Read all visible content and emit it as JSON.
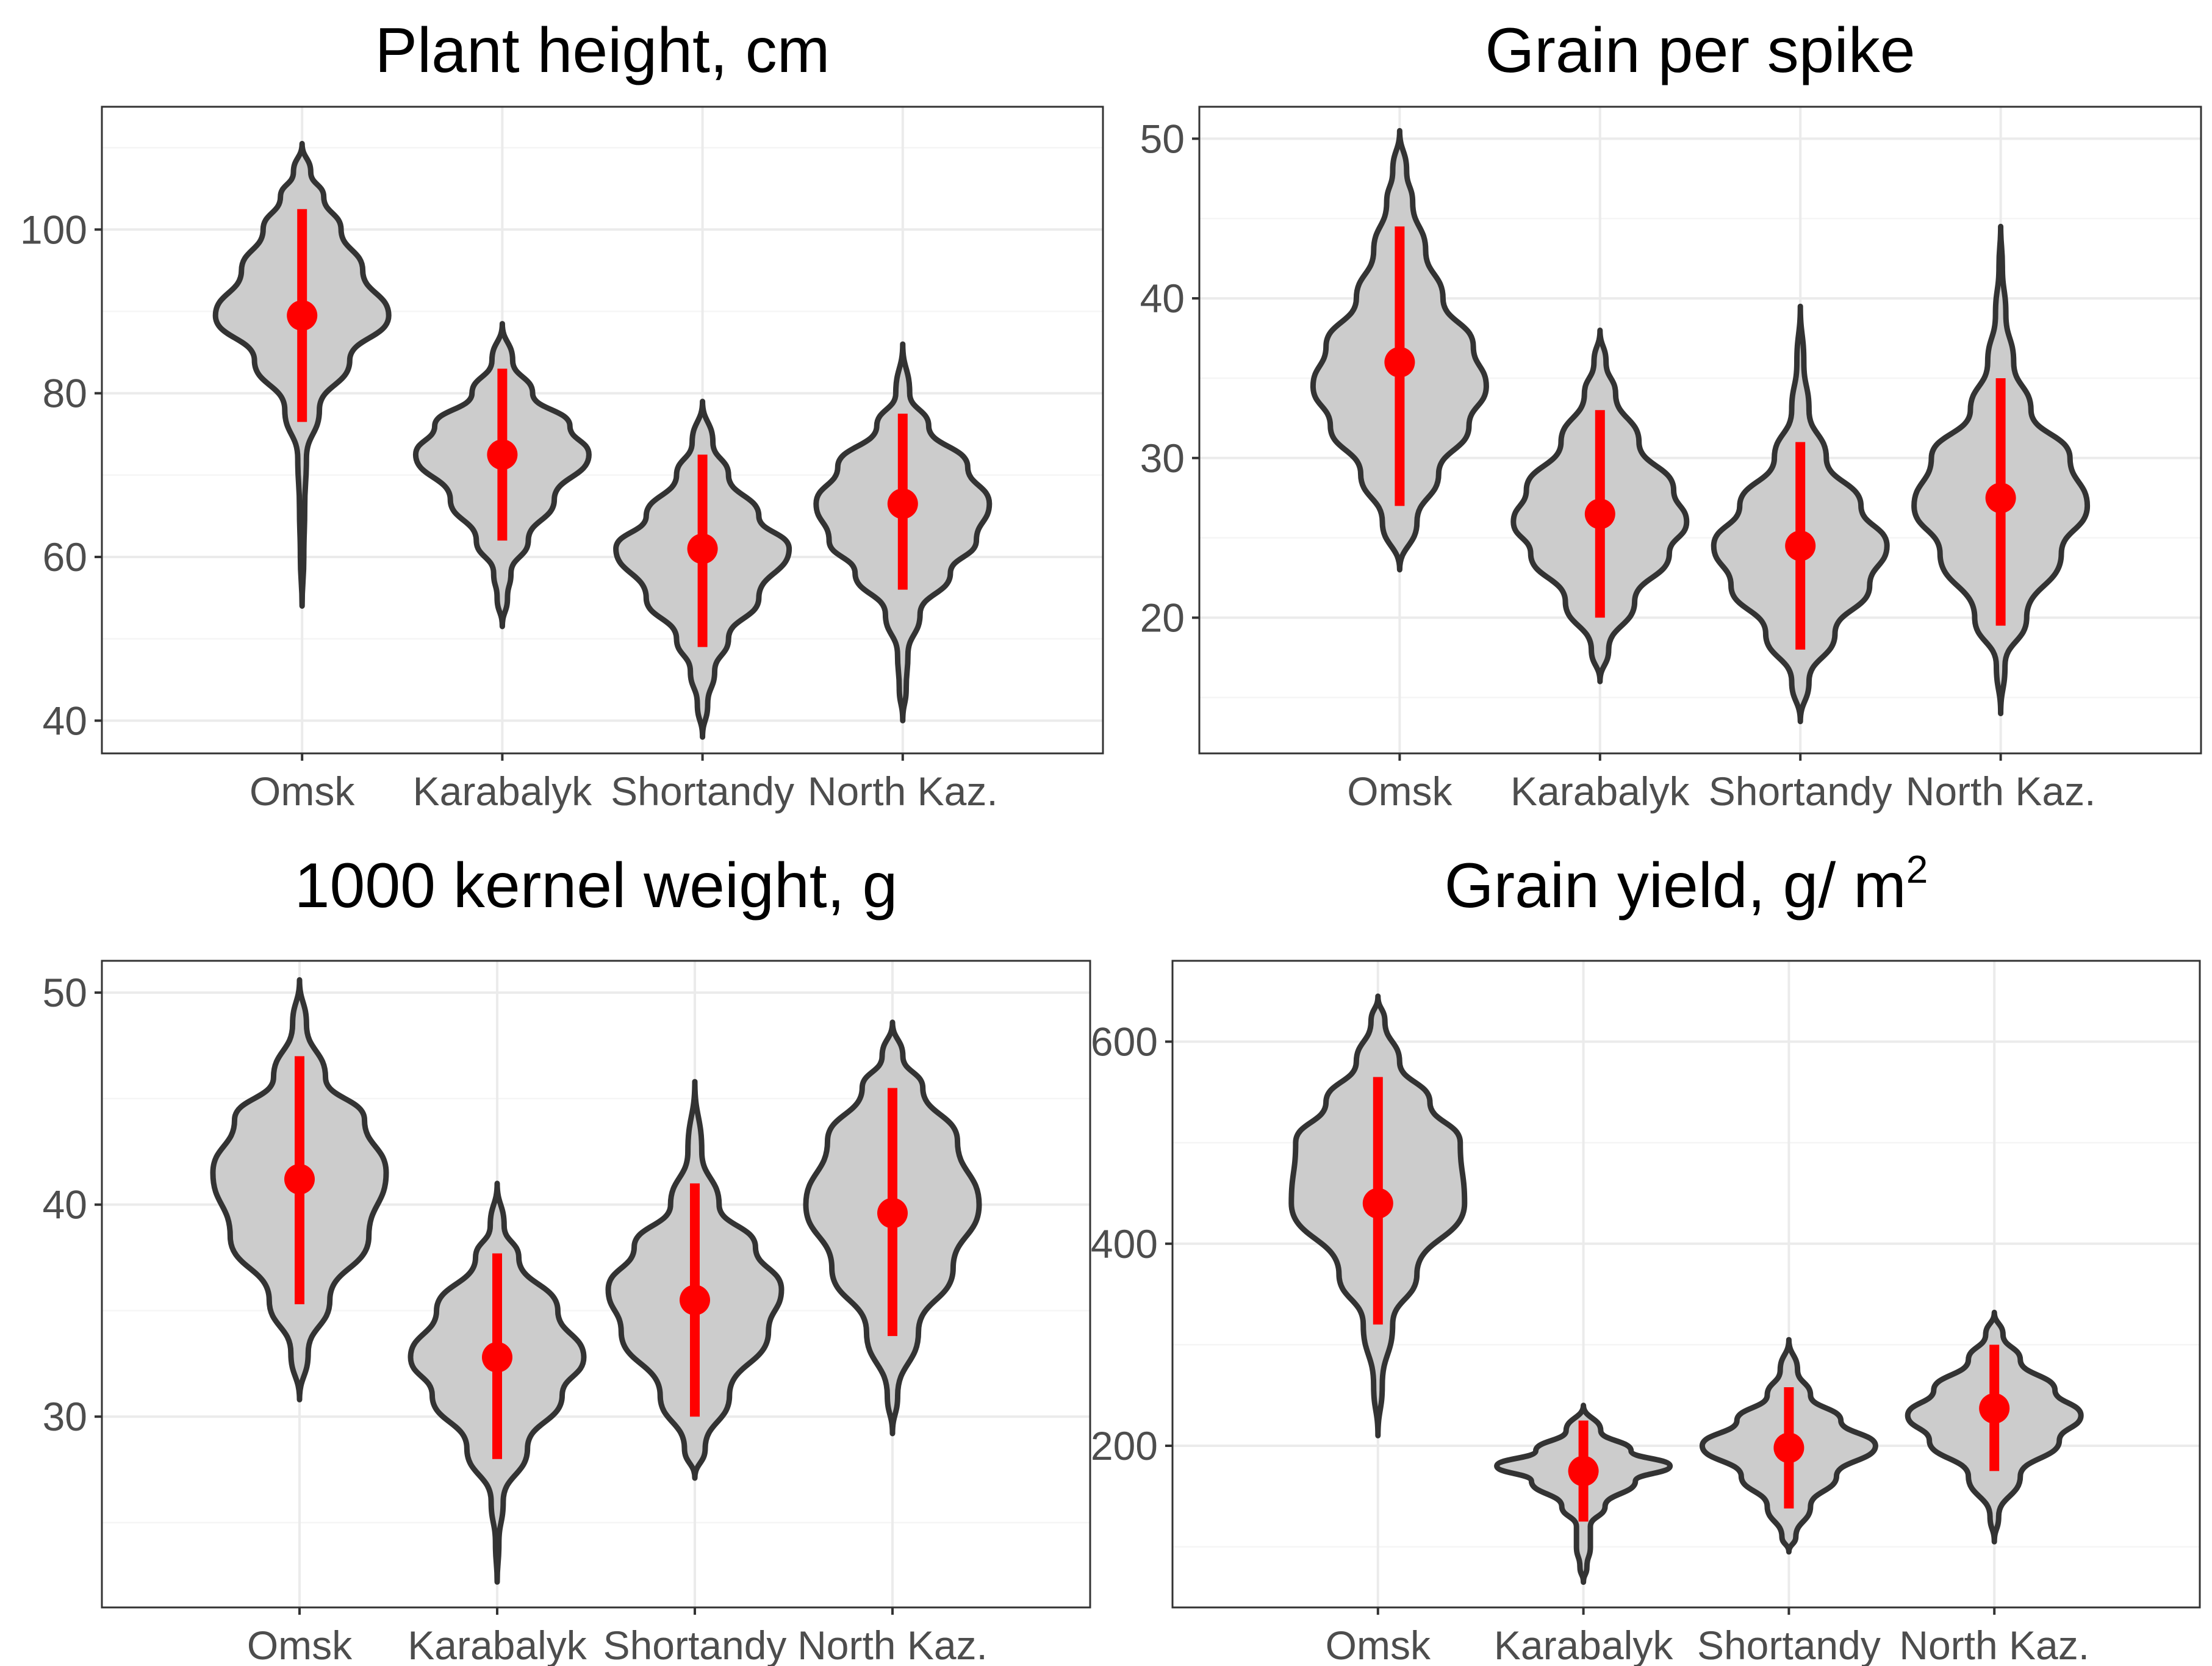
{
  "chart_data": [
    {
      "type": "violin",
      "title": "Plant height, cm",
      "title_superscript": "",
      "xlabel": "",
      "ylabel": "",
      "categories": [
        "Omsk",
        "Karabalyk",
        "Shortandy",
        "North Kaz."
      ],
      "ylim": [
        36,
        115
      ],
      "yticks": [
        40,
        60,
        80,
        100
      ],
      "mean": [
        89.5,
        72.5,
        61,
        66.5
      ],
      "range_low": [
        76.5,
        62,
        49,
        56
      ],
      "range_high": [
        102.5,
        83,
        72.5,
        77.5
      ],
      "min": [
        54,
        51.5,
        38,
        40
      ],
      "max": [
        110.5,
        88.5,
        79,
        86
      ],
      "violin_profiles": [
        [
          [
            54,
            0.0
          ],
          [
            60,
            0.02
          ],
          [
            66,
            0.03
          ],
          [
            72,
            0.05
          ],
          [
            78,
            0.2
          ],
          [
            84,
            0.55
          ],
          [
            89.5,
            1.0
          ],
          [
            95,
            0.7
          ],
          [
            100,
            0.45
          ],
          [
            104,
            0.25
          ],
          [
            107,
            0.1
          ],
          [
            110.5,
            0.0
          ]
        ],
        [
          [
            51.5,
            0.0
          ],
          [
            55,
            0.06
          ],
          [
            58,
            0.1
          ],
          [
            62,
            0.3
          ],
          [
            67,
            0.6
          ],
          [
            72.5,
            1.0
          ],
          [
            76,
            0.78
          ],
          [
            80,
            0.35
          ],
          [
            84,
            0.12
          ],
          [
            88.5,
            0.0
          ]
        ],
        [
          [
            38,
            0.0
          ],
          [
            42,
            0.06
          ],
          [
            46,
            0.14
          ],
          [
            50,
            0.3
          ],
          [
            55,
            0.65
          ],
          [
            61,
            1.0
          ],
          [
            65,
            0.65
          ],
          [
            70,
            0.3
          ],
          [
            74,
            0.12
          ],
          [
            79,
            0.0
          ]
        ],
        [
          [
            40,
            0.0
          ],
          [
            44,
            0.04
          ],
          [
            48,
            0.06
          ],
          [
            53,
            0.2
          ],
          [
            58,
            0.55
          ],
          [
            62,
            0.85
          ],
          [
            66.5,
            1.0
          ],
          [
            71,
            0.75
          ],
          [
            76,
            0.3
          ],
          [
            80,
            0.08
          ],
          [
            86,
            0.0
          ]
        ]
      ]
    },
    {
      "type": "violin",
      "title": "Grain per spike",
      "title_superscript": "",
      "xlabel": "",
      "ylabel": "",
      "categories": [
        "Omsk",
        "Karabalyk",
        "Shortandy",
        "North Kaz."
      ],
      "ylim": [
        11.5,
        52
      ],
      "yticks": [
        20,
        30,
        40,
        50
      ],
      "mean": [
        36,
        26.5,
        24.5,
        27.5
      ],
      "range_low": [
        27,
        20,
        18,
        19.5
      ],
      "range_high": [
        44.5,
        33,
        31,
        35
      ],
      "min": [
        23,
        16,
        13.5,
        14
      ],
      "max": [
        50.5,
        38,
        39.5,
        44.5
      ],
      "violin_profiles": [
        [
          [
            23,
            0.0
          ],
          [
            26,
            0.2
          ],
          [
            29,
            0.45
          ],
          [
            32,
            0.8
          ],
          [
            34.5,
            1.0
          ],
          [
            37,
            0.85
          ],
          [
            40,
            0.5
          ],
          [
            43,
            0.3
          ],
          [
            46,
            0.15
          ],
          [
            48,
            0.08
          ],
          [
            50.5,
            0.0
          ]
        ],
        [
          [
            16,
            0.0
          ],
          [
            18,
            0.1
          ],
          [
            21,
            0.4
          ],
          [
            24,
            0.8
          ],
          [
            26,
            1.0
          ],
          [
            28,
            0.85
          ],
          [
            31,
            0.45
          ],
          [
            34,
            0.18
          ],
          [
            36,
            0.07
          ],
          [
            38,
            0.0
          ]
        ],
        [
          [
            13.5,
            0.0
          ],
          [
            16,
            0.1
          ],
          [
            19,
            0.4
          ],
          [
            22,
            0.8
          ],
          [
            24.5,
            1.0
          ],
          [
            27,
            0.7
          ],
          [
            30,
            0.3
          ],
          [
            33,
            0.1
          ],
          [
            36,
            0.04
          ],
          [
            39.5,
            0.0
          ]
        ],
        [
          [
            14,
            0.0
          ],
          [
            17,
            0.05
          ],
          [
            20,
            0.3
          ],
          [
            24,
            0.7
          ],
          [
            27,
            1.0
          ],
          [
            30,
            0.8
          ],
          [
            33,
            0.35
          ],
          [
            36,
            0.15
          ],
          [
            39,
            0.06
          ],
          [
            42,
            0.02
          ],
          [
            44.5,
            0.0
          ]
        ]
      ]
    },
    {
      "type": "violin",
      "title": "1000 kernel weight, g",
      "title_superscript": "",
      "xlabel": "",
      "ylabel": "",
      "categories": [
        "Omsk",
        "Karabalyk",
        "Shortandy",
        "North Kaz."
      ],
      "ylim": [
        21,
        51.5
      ],
      "yticks": [
        30,
        40,
        50
      ],
      "mean": [
        41.2,
        32.8,
        35.5,
        39.6
      ],
      "range_low": [
        35.3,
        28,
        30,
        33.8
      ],
      "range_high": [
        47,
        37.7,
        41,
        45.5
      ],
      "min": [
        30.8,
        22.2,
        27.1,
        29.2
      ],
      "max": [
        50.6,
        41,
        45.8,
        48.6
      ],
      "violin_profiles": [
        [
          [
            30.8,
            0.0
          ],
          [
            33,
            0.1
          ],
          [
            35.5,
            0.35
          ],
          [
            38.5,
            0.8
          ],
          [
            41.5,
            1.0
          ],
          [
            44,
            0.75
          ],
          [
            46,
            0.3
          ],
          [
            48.5,
            0.08
          ],
          [
            50.6,
            0.0
          ]
        ],
        [
          [
            22.2,
            0.0
          ],
          [
            24,
            0.02
          ],
          [
            26,
            0.07
          ],
          [
            28.5,
            0.35
          ],
          [
            31,
            0.75
          ],
          [
            32.8,
            1.0
          ],
          [
            35,
            0.7
          ],
          [
            37.5,
            0.25
          ],
          [
            39,
            0.08
          ],
          [
            41,
            0.0
          ]
        ],
        [
          [
            27.1,
            0.0
          ],
          [
            28.5,
            0.12
          ],
          [
            31,
            0.4
          ],
          [
            34,
            0.85
          ],
          [
            36,
            1.0
          ],
          [
            38,
            0.7
          ],
          [
            40,
            0.28
          ],
          [
            42.5,
            0.08
          ],
          [
            45.8,
            0.0
          ]
        ],
        [
          [
            29.2,
            0.0
          ],
          [
            31,
            0.06
          ],
          [
            34,
            0.3
          ],
          [
            37,
            0.7
          ],
          [
            40,
            1.0
          ],
          [
            43,
            0.75
          ],
          [
            45.5,
            0.35
          ],
          [
            47,
            0.12
          ],
          [
            48.6,
            0.0
          ]
        ]
      ]
    },
    {
      "type": "violin",
      "title": "Grain yield, g/ m",
      "title_superscript": "2",
      "xlabel": "",
      "ylabel": "",
      "categories": [
        "Omsk",
        "Karabalyk",
        "Shortandy",
        "North Kaz."
      ],
      "ylim": [
        40,
        680
      ],
      "yticks": [
        200,
        400,
        600
      ],
      "mean": [
        440,
        175,
        198,
        237
      ],
      "range_low": [
        320,
        125,
        138,
        175
      ],
      "range_high": [
        565,
        225,
        258,
        300
      ],
      "min": [
        210,
        65,
        95,
        105
      ],
      "max": [
        645,
        240,
        305,
        332
      ],
      "violin_profiles": [
        [
          [
            210,
            0.0
          ],
          [
            260,
            0.05
          ],
          [
            320,
            0.17
          ],
          [
            370,
            0.45
          ],
          [
            440,
            1.0
          ],
          [
            500,
            0.95
          ],
          [
            540,
            0.6
          ],
          [
            580,
            0.25
          ],
          [
            620,
            0.08
          ],
          [
            645,
            0.0
          ]
        ],
        [
          [
            65,
            0.0
          ],
          [
            80,
            0.04
          ],
          [
            100,
            0.08
          ],
          [
            120,
            0.08
          ],
          [
            140,
            0.25
          ],
          [
            165,
            0.6
          ],
          [
            180,
            1.0
          ],
          [
            195,
            0.55
          ],
          [
            215,
            0.2
          ],
          [
            240,
            0.0
          ]
        ],
        [
          [
            95,
            0.0
          ],
          [
            110,
            0.08
          ],
          [
            140,
            0.25
          ],
          [
            170,
            0.55
          ],
          [
            200,
            1.0
          ],
          [
            225,
            0.6
          ],
          [
            250,
            0.25
          ],
          [
            275,
            0.1
          ],
          [
            305,
            0.0
          ]
        ],
        [
          [
            105,
            0.0
          ],
          [
            130,
            0.05
          ],
          [
            170,
            0.3
          ],
          [
            205,
            0.75
          ],
          [
            230,
            1.0
          ],
          [
            255,
            0.7
          ],
          [
            285,
            0.3
          ],
          [
            310,
            0.1
          ],
          [
            332,
            0.0
          ]
        ]
      ]
    }
  ]
}
